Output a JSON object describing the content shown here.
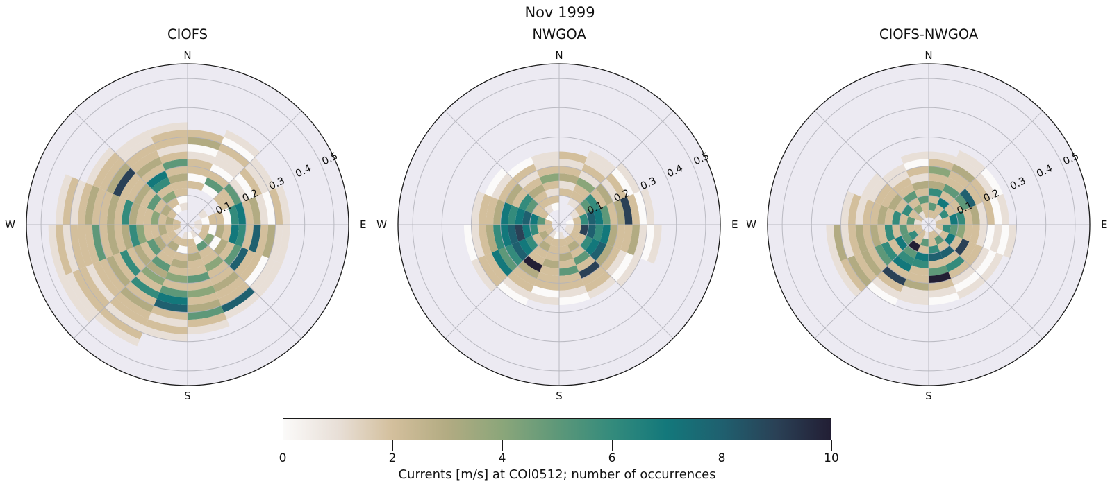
{
  "header": {
    "title": "Nov 1999"
  },
  "colorbar": {
    "caption": "Currents [m/s] at COI0512; number of occurrences",
    "ticks": [
      "0",
      "2",
      "4",
      "6",
      "8",
      "10"
    ],
    "vmin": 0,
    "vmax": 10,
    "palette": [
      "#fbfaf9",
      "#e8dfd7",
      "#d3bf9c",
      "#b2ab82",
      "#8ba67a",
      "#5e9879",
      "#348b7c",
      "#13787b",
      "#1f606f",
      "#2a4156",
      "#221e34"
    ]
  },
  "chart_data": {
    "type": "polar_histogram",
    "suptitle": "Nov 1999",
    "colorbar_label": "Currents [m/s] at COI0512; number of occurrences",
    "colorbar_range": [
      0,
      10
    ],
    "direction_bin_deg": 22.5,
    "ring_width": 0.025,
    "r_max": 0.55,
    "r_ticks": [
      0.1,
      0.2,
      0.3,
      0.4,
      0.5
    ],
    "r_tick_labels": [
      "0.1",
      "0.2",
      "0.3",
      "0.4",
      "0.5"
    ],
    "compass": {
      "n": "N",
      "e": "E",
      "s": "S",
      "w": "W"
    },
    "plot_bg": "#eceaf2",
    "grid_color": "#b2b2ba",
    "edge_color": "#1a1a1a",
    "roses": [
      {
        "title": "CIOFS",
        "values": [
          [
            null,
            null,
            null,
            null,
            null,
            2,
            0,
            2,
            2,
            1,
            0,
            3,
            2,
            null,
            null,
            null,
            null,
            null,
            null,
            null
          ],
          [
            null,
            null,
            null,
            null,
            null,
            0,
            5,
            2,
            0,
            1,
            1,
            2,
            0,
            1,
            null,
            null,
            null,
            null,
            null,
            null
          ],
          [
            null,
            null,
            1,
            null,
            null,
            2,
            2,
            5,
            1,
            0,
            2,
            1,
            1,
            null,
            null,
            null,
            null,
            null,
            null,
            null
          ],
          [
            null,
            1,
            0,
            2,
            2,
            0,
            6,
            7,
            2,
            3,
            1,
            0,
            2,
            1,
            null,
            null,
            null,
            null,
            null,
            null
          ],
          [
            null,
            1,
            2,
            0,
            3,
            2,
            7,
            6,
            2,
            8,
            2,
            3,
            1,
            1,
            null,
            null,
            null,
            null,
            null,
            null
          ],
          [
            1,
            null,
            2,
            4,
            0,
            3,
            2,
            5,
            8,
            2,
            2,
            0,
            1,
            1,
            null,
            null,
            null,
            null,
            null,
            null
          ],
          [
            null,
            1,
            0,
            5,
            2,
            2,
            4,
            2,
            2,
            3,
            2,
            2,
            8,
            1,
            null,
            null,
            null,
            null,
            null,
            null
          ],
          [
            null,
            0,
            2,
            2,
            3,
            2,
            2,
            5,
            2,
            4,
            2,
            3,
            5,
            2,
            1,
            null,
            null,
            null,
            null,
            null
          ],
          [
            null,
            1,
            2,
            0,
            2,
            3,
            2,
            4,
            2,
            5,
            7,
            8,
            2,
            1,
            2,
            1,
            null,
            null,
            null,
            null
          ],
          [
            null,
            null,
            2,
            3,
            2,
            2,
            5,
            3,
            4,
            2,
            6,
            2,
            3,
            2,
            2,
            1,
            2,
            1,
            null,
            null
          ],
          [
            null,
            1,
            2,
            2,
            3,
            5,
            2,
            3,
            2,
            6,
            2,
            3,
            2,
            2,
            1,
            2,
            2,
            1,
            1,
            null
          ],
          [
            null,
            2,
            2,
            3,
            2,
            2,
            4,
            6,
            3,
            2,
            3,
            2,
            5,
            2,
            2,
            2,
            1,
            2,
            1,
            null
          ],
          [
            null,
            2,
            3,
            2,
            4,
            2,
            2,
            3,
            6,
            2,
            3,
            2,
            2,
            3,
            2,
            1,
            2,
            1,
            null,
            null
          ],
          [
            null,
            null,
            2,
            3,
            2,
            5,
            2,
            3,
            2,
            2,
            9,
            3,
            2,
            2,
            1,
            null,
            null,
            null,
            null,
            null
          ],
          [
            null,
            null,
            0,
            2,
            4,
            2,
            6,
            7,
            2,
            3,
            2,
            2,
            1,
            1,
            null,
            null,
            null,
            null,
            null,
            null
          ],
          [
            null,
            null,
            1,
            0,
            2,
            2,
            3,
            2,
            5,
            2,
            1,
            2,
            2,
            1,
            null,
            null,
            null,
            null,
            null,
            null
          ]
        ]
      },
      {
        "title": "NWGOA",
        "values": [
          [
            null,
            null,
            null,
            null,
            2,
            1,
            3,
            2,
            1,
            2,
            null,
            null,
            null,
            null,
            null,
            null,
            null,
            null,
            null,
            null
          ],
          [
            null,
            null,
            null,
            1,
            2,
            2,
            4,
            1,
            2,
            1,
            1,
            null,
            null,
            null,
            null,
            null,
            null,
            null,
            null,
            null
          ],
          [
            null,
            null,
            1,
            2,
            5,
            6,
            2,
            3,
            1,
            2,
            0,
            1,
            null,
            null,
            null,
            null,
            null,
            null,
            null,
            null
          ],
          [
            null,
            0,
            2,
            6,
            8,
            7,
            5,
            2,
            3,
            9,
            2,
            0,
            1,
            null,
            null,
            null,
            null,
            null,
            null,
            null
          ],
          [
            null,
            1,
            2,
            9,
            8,
            6,
            7,
            3,
            2,
            2,
            3,
            1,
            0,
            1,
            null,
            null,
            null,
            null,
            null,
            null
          ],
          [
            null,
            1,
            2,
            2,
            6,
            7,
            8,
            3,
            2,
            1,
            0,
            1,
            null,
            null,
            null,
            null,
            null,
            null,
            null,
            null
          ],
          [
            null,
            null,
            2,
            3,
            2,
            5,
            2,
            9,
            2,
            2,
            1,
            null,
            null,
            null,
            null,
            null,
            null,
            null,
            null,
            null
          ],
          [
            null,
            1,
            2,
            2,
            3,
            2,
            5,
            2,
            2,
            1,
            0,
            null,
            null,
            null,
            null,
            null,
            null,
            null,
            null,
            null
          ],
          [
            null,
            0,
            2,
            2,
            2,
            3,
            2,
            2,
            2,
            0,
            1,
            null,
            null,
            null,
            null,
            null,
            null,
            null,
            null,
            null
          ],
          [
            null,
            1,
            2,
            3,
            2,
            2,
            10,
            3,
            2,
            2,
            1,
            0,
            null,
            null,
            null,
            null,
            null,
            null,
            null,
            null
          ],
          [
            null,
            2,
            3,
            2,
            6,
            7,
            8,
            6,
            5,
            7,
            2,
            2,
            1,
            null,
            null,
            null,
            null,
            null,
            null,
            null
          ],
          [
            null,
            2,
            2,
            6,
            7,
            9,
            8,
            7,
            6,
            3,
            2,
            1,
            0,
            null,
            null,
            null,
            null,
            null,
            null,
            null
          ],
          [
            null,
            2,
            5,
            7,
            8,
            7,
            6,
            7,
            3,
            2,
            2,
            1,
            null,
            null,
            null,
            null,
            null,
            null,
            null,
            null
          ],
          [
            null,
            0,
            2,
            2,
            5,
            6,
            2,
            3,
            2,
            1,
            0,
            null,
            null,
            null,
            null,
            null,
            null,
            null,
            null,
            null
          ],
          [
            null,
            null,
            1,
            2,
            2,
            3,
            2,
            1,
            2,
            0,
            null,
            null,
            null,
            null,
            null,
            null,
            null,
            null,
            null,
            null
          ],
          [
            null,
            null,
            0,
            2,
            1,
            2,
            4,
            2,
            1,
            1,
            null,
            null,
            null,
            null,
            null,
            null,
            null,
            null,
            null,
            null
          ]
        ]
      },
      {
        "title": "CIOFS-NWGOA",
        "values": [
          [
            null,
            2,
            5,
            2,
            6,
            3,
            2,
            4,
            2,
            1,
            null,
            null,
            null,
            null,
            null,
            null,
            null,
            null,
            null,
            null
          ],
          [
            null,
            2,
            2,
            7,
            2,
            5,
            2,
            2,
            3,
            1,
            1,
            null,
            null,
            null,
            null,
            null,
            null,
            null,
            null,
            null
          ],
          [
            null,
            1,
            6,
            2,
            2,
            5,
            8,
            2,
            2,
            1,
            0,
            null,
            null,
            null,
            null,
            null,
            null,
            null,
            null,
            null
          ],
          [
            null,
            2,
            2,
            7,
            6,
            2,
            3,
            1,
            2,
            0,
            1,
            null,
            null,
            null,
            null,
            null,
            null,
            null,
            null,
            null
          ],
          [
            null,
            2,
            6,
            5,
            4,
            2,
            2,
            1,
            0,
            1,
            0,
            1,
            null,
            null,
            null,
            null,
            null,
            null,
            null,
            null
          ],
          [
            null,
            1,
            2,
            7,
            2,
            9,
            2,
            2,
            1,
            0,
            1,
            null,
            null,
            null,
            null,
            null,
            null,
            null,
            null,
            null
          ],
          [
            null,
            2,
            5,
            2,
            8,
            2,
            6,
            2,
            1,
            0,
            1,
            null,
            null,
            null,
            null,
            null,
            null,
            null,
            null,
            null
          ],
          [
            null,
            2,
            2,
            6,
            8,
            2,
            5,
            10,
            2,
            1,
            0,
            null,
            null,
            null,
            null,
            null,
            null,
            null,
            null,
            null
          ],
          [
            null,
            1,
            5,
            2,
            7,
            6,
            2,
            2,
            3,
            1,
            1,
            null,
            null,
            null,
            null,
            null,
            null,
            null,
            null,
            null
          ],
          [
            null,
            2,
            2,
            10,
            5,
            6,
            7,
            2,
            9,
            2,
            1,
            0,
            null,
            null,
            null,
            null,
            null,
            null,
            null,
            null
          ],
          [
            null,
            2,
            6,
            5,
            7,
            2,
            6,
            5,
            2,
            3,
            2,
            3,
            2,
            1,
            null,
            null,
            null,
            null,
            null,
            null
          ],
          [
            null,
            2,
            2,
            5,
            2,
            6,
            2,
            3,
            2,
            3,
            2,
            1,
            3,
            1,
            null,
            null,
            null,
            null,
            null,
            null
          ],
          [
            null,
            1,
            5,
            2,
            6,
            2,
            3,
            2,
            2,
            1,
            2,
            1,
            null,
            null,
            null,
            null,
            null,
            null,
            null,
            null
          ],
          [
            null,
            2,
            2,
            6,
            2,
            3,
            2,
            2,
            1,
            1,
            null,
            null,
            null,
            null,
            null,
            null,
            null,
            null,
            null,
            null
          ],
          [
            null,
            1,
            4,
            2,
            5,
            2,
            2,
            1,
            1,
            null,
            null,
            null,
            null,
            null,
            null,
            null,
            null,
            null,
            null,
            null
          ],
          [
            null,
            2,
            2,
            5,
            2,
            3,
            1,
            2,
            0,
            1,
            null,
            null,
            null,
            null,
            null,
            null,
            null,
            null,
            null,
            null
          ]
        ]
      }
    ]
  }
}
